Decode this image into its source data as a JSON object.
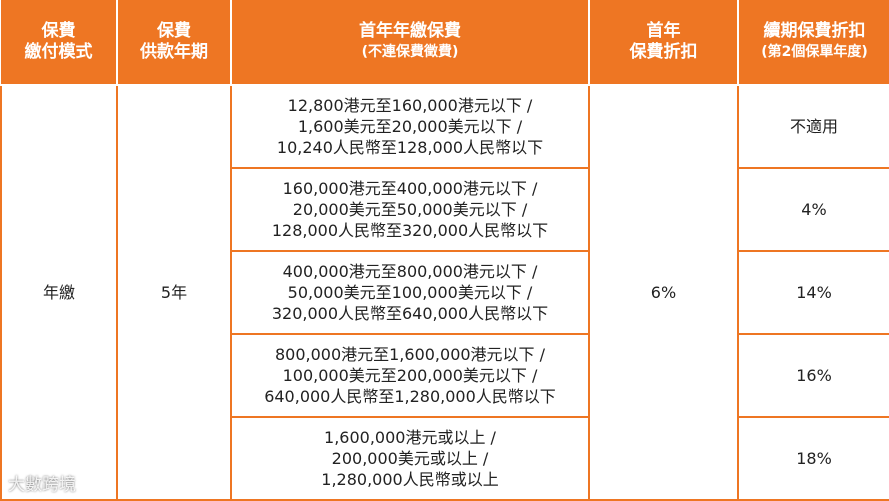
{
  "table": {
    "header": [
      [
        "保費",
        "繳付模式"
      ],
      [
        "保費",
        "供款年期"
      ],
      [
        "首年年繳保費",
        "(不連保費徵費)"
      ],
      [
        "首年",
        "保費折扣"
      ],
      [
        "續期保費折扣",
        "(第2個保單年度)"
      ]
    ],
    "payment_mode": "年繳",
    "term": "5年",
    "first_year_discount": "6%",
    "rows": [
      {
        "premium": [
          "12,800港元至160,000港元以下 /",
          "1,600美元至20,000美元以下 /",
          "10,240人民幣至128,000人民幣以下"
        ],
        "renewal_discount": "不適用"
      },
      {
        "premium": [
          "160,000港元至400,000港元以下 /",
          "20,000美元至50,000美元以下 /",
          "128,000人民幣至320,000人民幣以下"
        ],
        "renewal_discount": "4%"
      },
      {
        "premium": [
          "400,000港元至800,000港元以下 /",
          "50,000美元至100,000美元以下 /",
          "320,000人民幣至640,000人民幣以下"
        ],
        "renewal_discount": "14%"
      },
      {
        "premium": [
          "800,000港元至1,600,000港元以下 /",
          "100,000美元至200,000美元以下 /",
          "640,000人民幣至1,280,000人民幣以下"
        ],
        "renewal_discount": "16%"
      },
      {
        "premium": [
          "1,600,000港元或以上 /",
          "200,000美元或以上 /",
          "1,280,000人民幣或以上"
        ],
        "renewal_discount": "18%"
      }
    ]
  },
  "watermark": "大數跨境"
}
